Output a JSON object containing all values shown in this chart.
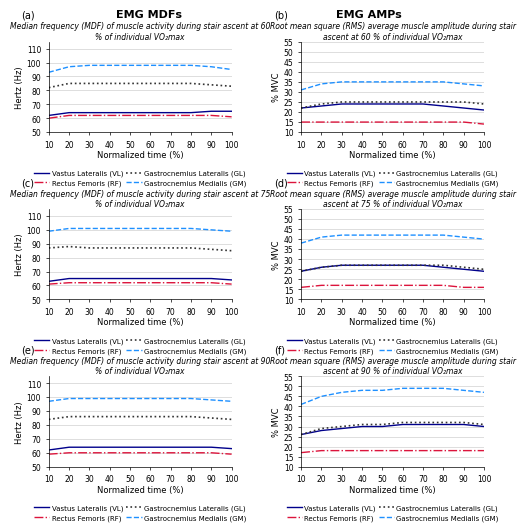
{
  "x": [
    10,
    20,
    30,
    40,
    50,
    60,
    70,
    80,
    90,
    100
  ],
  "panels": [
    {
      "label": "(a)",
      "title": "Median frequency (MDF) of muscle activity during stair ascent at 60\n% of individual VO₂max",
      "ylabel": "Hertz (Hz)",
      "ylim": [
        50,
        115
      ],
      "yticks": [
        50,
        60,
        70,
        80,
        90,
        100,
        110
      ],
      "VL": [
        62,
        64,
        64,
        64,
        64,
        64,
        64,
        64,
        65,
        65
      ],
      "RF": [
        60,
        62,
        62,
        62,
        62,
        62,
        62,
        62,
        62,
        61
      ],
      "GL": [
        82,
        85,
        85,
        85,
        85,
        85,
        85,
        85,
        84,
        83
      ],
      "GM": [
        93,
        97,
        98,
        98,
        98,
        98,
        98,
        98,
        97,
        95
      ]
    },
    {
      "label": "(b)",
      "title": "Root mean square (RMS) average muscle amplitude during stair\nascent at 60 % of individual VO₂max",
      "ylabel": "% MVC",
      "ylim": [
        10,
        55
      ],
      "yticks": [
        10,
        15,
        20,
        25,
        30,
        35,
        40,
        45,
        50,
        55
      ],
      "VL": [
        22,
        23,
        24,
        24,
        24,
        24,
        24,
        23,
        22,
        21
      ],
      "RF": [
        15,
        15,
        15,
        15,
        15,
        15,
        15,
        15,
        15,
        14
      ],
      "GL": [
        22,
        24,
        25,
        25,
        25,
        25,
        25,
        25,
        25,
        24
      ],
      "GM": [
        31,
        34,
        35,
        35,
        35,
        35,
        35,
        35,
        34,
        33
      ]
    },
    {
      "label": "(c)",
      "title": "Median frequency (MDF) of muscle activity during stair ascent at 75\n% of individual VO₂max",
      "ylabel": "Hertz (Hz)",
      "ylim": [
        50,
        115
      ],
      "yticks": [
        50,
        60,
        70,
        80,
        90,
        100,
        110
      ],
      "VL": [
        63,
        65,
        65,
        65,
        65,
        65,
        65,
        65,
        65,
        64
      ],
      "RF": [
        61,
        62,
        62,
        62,
        62,
        62,
        62,
        62,
        62,
        61
      ],
      "GL": [
        87,
        88,
        87,
        87,
        87,
        87,
        87,
        87,
        86,
        85
      ],
      "GM": [
        99,
        101,
        101,
        101,
        101,
        101,
        101,
        101,
        100,
        99
      ]
    },
    {
      "label": "(d)",
      "title": "Root mean square (RMS) average muscle amplitude during stair\nascent at 75 % of individual VO₂max",
      "ylabel": "% MVC",
      "ylim": [
        10,
        55
      ],
      "yticks": [
        10,
        15,
        20,
        25,
        30,
        35,
        40,
        45,
        50,
        55
      ],
      "VL": [
        24,
        26,
        27,
        27,
        27,
        27,
        27,
        26,
        25,
        24
      ],
      "RF": [
        16,
        17,
        17,
        17,
        17,
        17,
        17,
        17,
        16,
        16
      ],
      "GL": [
        24,
        26,
        27,
        27,
        27,
        27,
        27,
        27,
        26,
        25
      ],
      "GM": [
        38,
        41,
        42,
        42,
        42,
        42,
        42,
        42,
        41,
        40
      ]
    },
    {
      "label": "(e)",
      "title": "Median frequency (MDF) of muscle activity during stair ascent at 90\n% of individual VO₂max",
      "ylabel": "Hertz (Hz)",
      "ylim": [
        50,
        115
      ],
      "yticks": [
        50,
        60,
        70,
        80,
        90,
        100,
        110
      ],
      "VL": [
        62,
        64,
        64,
        64,
        64,
        64,
        64,
        64,
        64,
        63
      ],
      "RF": [
        59,
        60,
        60,
        60,
        60,
        60,
        60,
        60,
        60,
        59
      ],
      "GL": [
        84,
        86,
        86,
        86,
        86,
        86,
        86,
        86,
        85,
        84
      ],
      "GM": [
        97,
        99,
        99,
        99,
        99,
        99,
        99,
        99,
        98,
        97
      ]
    },
    {
      "label": "(f)",
      "title": "Root mean square (RMS) average muscle amplitude during stair\nascent at 90 % of individual VO₂max",
      "ylabel": "% MVC",
      "ylim": [
        10,
        55
      ],
      "yticks": [
        10,
        15,
        20,
        25,
        30,
        35,
        40,
        45,
        50,
        55
      ],
      "VL": [
        26,
        28,
        29,
        30,
        30,
        31,
        31,
        31,
        31,
        30
      ],
      "RF": [
        17,
        18,
        18,
        18,
        18,
        18,
        18,
        18,
        18,
        18
      ],
      "GL": [
        26,
        29,
        30,
        31,
        31,
        32,
        32,
        32,
        32,
        31
      ],
      "GM": [
        41,
        45,
        47,
        48,
        48,
        49,
        49,
        49,
        48,
        47
      ]
    }
  ],
  "col_titles": [
    "EMG MDFs",
    "EMG AMPs"
  ],
  "line_styles": {
    "VL": {
      "color": "#00008B",
      "linestyle": "-",
      "linewidth": 1.0
    },
    "RF": {
      "color": "#DC143C",
      "linestyle": "-.",
      "linewidth": 1.0
    },
    "GL": {
      "color": "#333333",
      "linestyle": ":",
      "linewidth": 1.2
    },
    "GM": {
      "color": "#1E90FF",
      "linestyle": "--",
      "linewidth": 1.0
    }
  },
  "legend_labels": {
    "VL": "Vastus Lateralis (VL)",
    "RF": "Rectus Femoris (RF)",
    "GL": "Gastrocnemius Lateralis (GL)",
    "GM": "Gastrocnemius Medialis (GM)"
  },
  "xlabel": "Normalized time (%)",
  "xticks": [
    10,
    20,
    30,
    40,
    50,
    60,
    70,
    80,
    90,
    100
  ],
  "background_color": "#ffffff",
  "grid_color": "#d0d0d0",
  "title_fontsize": 5.5,
  "col_title_fontsize": 8,
  "label_fontsize": 6,
  "tick_fontsize": 5.5,
  "legend_fontsize": 5.0,
  "panel_label_fontsize": 7
}
